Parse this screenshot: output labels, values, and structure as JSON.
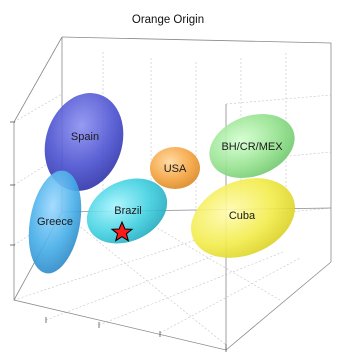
{
  "chart_data": {
    "type": "scatter",
    "title": "Orange Origin",
    "xlabel": "",
    "ylabel": "",
    "grid": true,
    "projection": "3d",
    "clusters": [
      {
        "name": "Spain",
        "color": "#3f44c8"
      },
      {
        "name": "Greece",
        "color": "#3a9fe0"
      },
      {
        "name": "Brazil",
        "color": "#2cc4d6"
      },
      {
        "name": "USA",
        "color": "#f0a040"
      },
      {
        "name": "BH/CR/MEX",
        "color": "#8fe08c"
      },
      {
        "name": "Cuba",
        "color": "#f2ee40"
      }
    ],
    "marker": {
      "symbol": "star",
      "color": "#ff1a1a",
      "cluster": "Brazil"
    }
  }
}
